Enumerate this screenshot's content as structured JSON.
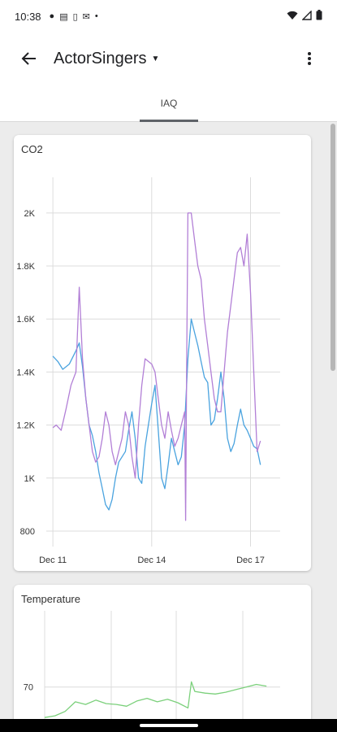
{
  "status_bar": {
    "time": "10:38",
    "left_icons": [
      "dot-icon",
      "message-icon",
      "sim-icon",
      "mail-icon",
      "more-dot-icon"
    ],
    "right_icons": [
      "wifi-icon",
      "signal-icon",
      "battery-icon"
    ]
  },
  "app_bar": {
    "title": "ActorSingers"
  },
  "tabs": [
    {
      "label": "IAQ",
      "selected": true
    }
  ],
  "colors": {
    "co2_series_a": "#4aa3df",
    "co2_series_b": "#b27fd6",
    "temperature_series": "#7bd07b"
  },
  "cards": {
    "co2": {
      "title": "CO2"
    },
    "temperature": {
      "title": "Temperature"
    }
  },
  "chart_data": [
    {
      "type": "line",
      "title": "CO2",
      "xlabel": "",
      "ylabel": "",
      "x_tick_labels": [
        "Dec 11",
        "Dec 14",
        "Dec 17"
      ],
      "x_ticks": [
        0,
        3,
        6
      ],
      "x_range": [
        -0.2,
        6.9
      ],
      "y_ticks": [
        800,
        1000,
        1200,
        1400,
        1600,
        1800,
        2000
      ],
      "y_tick_labels": [
        "800",
        "1K",
        "1.2K",
        "1.4K",
        "1.6K",
        "1.8K",
        "2K"
      ],
      "ylim": [
        760,
        2110
      ],
      "grid": true,
      "series": [
        {
          "color": "#4aa3df",
          "x": [
            0,
            0.15,
            0.3,
            0.5,
            0.7,
            0.8,
            0.9,
            1.0,
            1.1,
            1.2,
            1.3,
            1.4,
            1.5,
            1.6,
            1.7,
            1.8,
            1.9,
            2.0,
            2.1,
            2.2,
            2.3,
            2.4,
            2.5,
            2.6,
            2.7,
            2.8,
            2.9,
            3.0,
            3.1,
            3.2,
            3.3,
            3.4,
            3.5,
            3.6,
            3.7,
            3.8,
            3.9,
            4.0,
            4.1,
            4.2,
            4.3,
            4.4,
            4.5,
            4.6,
            4.7,
            4.8,
            4.9,
            5.0,
            5.1,
            5.2,
            5.3,
            5.4,
            5.5,
            5.6,
            5.7,
            5.8,
            5.9,
            6.0,
            6.1,
            6.2,
            6.3
          ],
          "values": [
            1460,
            1440,
            1410,
            1430,
            1480,
            1510,
            1420,
            1300,
            1200,
            1160,
            1100,
            1020,
            960,
            900,
            880,
            920,
            1000,
            1060,
            1080,
            1100,
            1180,
            1250,
            1150,
            1000,
            980,
            1120,
            1200,
            1280,
            1350,
            1180,
            1000,
            960,
            1050,
            1150,
            1100,
            1050,
            1080,
            1200,
            1450,
            1600,
            1550,
            1500,
            1440,
            1380,
            1360,
            1200,
            1220,
            1300,
            1400,
            1300,
            1150,
            1100,
            1130,
            1200,
            1260,
            1200,
            1180,
            1150,
            1120,
            1110,
            1050
          ]
        },
        {
          "color": "#b27fd6",
          "x": [
            0,
            0.1,
            0.25,
            0.4,
            0.55,
            0.7,
            0.8,
            0.9,
            1.0,
            1.1,
            1.2,
            1.3,
            1.4,
            1.5,
            1.6,
            1.7,
            1.8,
            1.9,
            2.0,
            2.1,
            2.2,
            2.3,
            2.4,
            2.5,
            2.6,
            2.7,
            2.8,
            2.9,
            3.0,
            3.1,
            3.2,
            3.3,
            3.4,
            3.5,
            3.6,
            3.7,
            3.8,
            3.9,
            4.0,
            4.03,
            4.06,
            4.1,
            4.2,
            4.3,
            4.4,
            4.5,
            4.6,
            4.7,
            4.8,
            4.9,
            5.0,
            5.1,
            5.2,
            5.3,
            5.4,
            5.5,
            5.6,
            5.7,
            5.8,
            5.9,
            6.0,
            6.1,
            6.2,
            6.3
          ],
          "values": [
            1190,
            1200,
            1180,
            1260,
            1350,
            1400,
            1720,
            1450,
            1300,
            1200,
            1100,
            1060,
            1080,
            1150,
            1250,
            1200,
            1100,
            1050,
            1100,
            1150,
            1250,
            1200,
            1080,
            1000,
            1200,
            1350,
            1450,
            1440,
            1430,
            1400,
            1300,
            1200,
            1150,
            1250,
            1180,
            1120,
            1150,
            1200,
            1250,
            840,
            1400,
            2000,
            2000,
            1900,
            1800,
            1750,
            1600,
            1500,
            1400,
            1300,
            1250,
            1250,
            1400,
            1550,
            1650,
            1750,
            1850,
            1870,
            1800,
            1920,
            1700,
            1400,
            1100,
            1140
          ]
        }
      ]
    },
    {
      "type": "line",
      "title": "Temperature",
      "xlabel": "",
      "ylabel": "",
      "y_ticks": [
        70
      ],
      "y_tick_labels": [
        "70"
      ],
      "ylim": [
        64,
        78
      ],
      "x_range": [
        0,
        6.9
      ],
      "grid": true,
      "series": [
        {
          "color": "#7bd07b",
          "x": [
            0,
            0.3,
            0.6,
            0.9,
            1.2,
            1.5,
            1.8,
            2.1,
            2.4,
            2.7,
            3.0,
            3.3,
            3.6,
            3.9,
            4.2,
            4.3,
            4.4,
            4.7,
            5.0,
            5.3,
            5.6,
            5.9,
            6.2,
            6.5
          ],
          "values": [
            66.5,
            66.7,
            67.2,
            68.3,
            68.0,
            68.5,
            68.1,
            68.0,
            67.8,
            68.4,
            68.7,
            68.3,
            68.6,
            68.2,
            67.6,
            70.6,
            69.5,
            69.3,
            69.2,
            69.4,
            69.7,
            70.0,
            70.3,
            70.1
          ]
        }
      ]
    }
  ]
}
